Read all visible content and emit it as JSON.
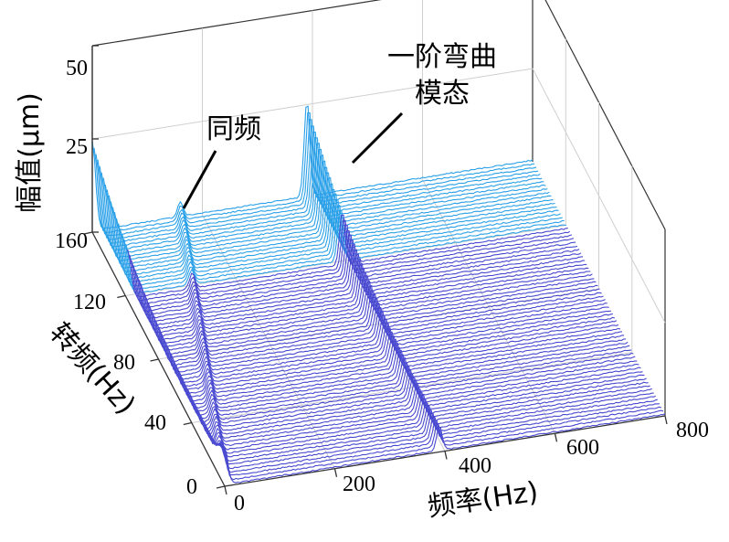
{
  "chart_data": {
    "type": "waterfall",
    "title": "",
    "xlabel": "频率(Hz)",
    "ylabel": "转频(Hz)",
    "zlabel": "幅值(μm)",
    "xlim": [
      0,
      800
    ],
    "ylim": [
      0,
      160
    ],
    "zlim": [
      0,
      50
    ],
    "x_ticks": [
      "0",
      "200",
      "400",
      "600",
      "800"
    ],
    "y_ticks": [
      "0",
      "40",
      "80",
      "120",
      "160"
    ],
    "z_ticks": [
      "25",
      "50"
    ],
    "grid": true,
    "series_count": 72,
    "line_color": "#4848d0",
    "peak_color": "#2aa0e8",
    "components": [
      {
        "name": "同频",
        "kind": "1x",
        "freq_ratio": 1.0,
        "amplitude": 4
      },
      {
        "name": "一阶弯曲模态",
        "kind": "fixed",
        "freq": 390,
        "amplitude": 26
      },
      {
        "name": "",
        "kind": "fixed",
        "freq": 0,
        "amplitude": 24
      }
    ],
    "annotations": [
      {
        "text": "同频"
      },
      {
        "lines": [
          "一阶弯曲",
          "模态"
        ]
      }
    ]
  }
}
